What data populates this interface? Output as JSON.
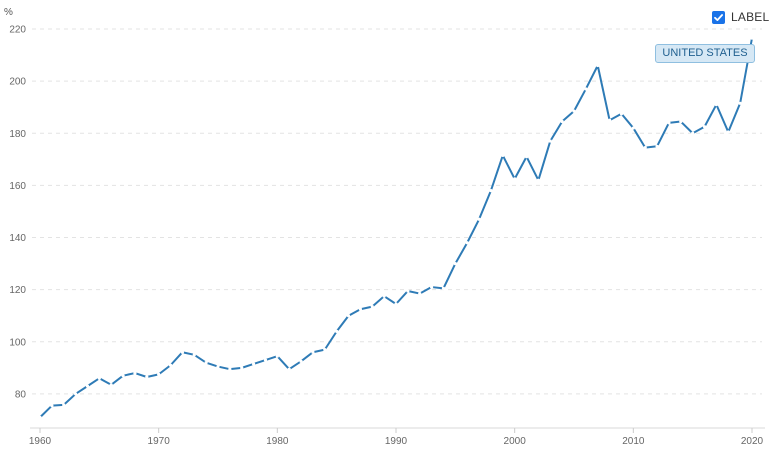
{
  "chart_data": {
    "type": "line",
    "ylabel": "%",
    "ylim": [
      70,
      220
    ],
    "xlim": [
      1960,
      2020
    ],
    "y_ticks": [
      80,
      100,
      120,
      140,
      160,
      180,
      200,
      220
    ],
    "x_ticks": [
      1960,
      1970,
      1980,
      1990,
      2000,
      2010,
      2020
    ],
    "grid": "horizontal dashed",
    "series": [
      {
        "name": "UNITED STATES",
        "color": "#2e7bb6",
        "x": [
          1960,
          1961,
          1962,
          1963,
          1964,
          1965,
          1966,
          1967,
          1968,
          1969,
          1970,
          1971,
          1972,
          1973,
          1974,
          1975,
          1976,
          1977,
          1978,
          1979,
          1980,
          1981,
          1982,
          1983,
          1984,
          1985,
          1986,
          1987,
          1988,
          1989,
          1990,
          1991,
          1992,
          1993,
          1994,
          1995,
          1996,
          1997,
          1998,
          1999,
          2000,
          2001,
          2002,
          2003,
          2004,
          2005,
          2006,
          2007,
          2008,
          2009,
          2010,
          2011,
          2012,
          2013,
          2014,
          2015,
          2016,
          2017,
          2018,
          2019,
          2020
        ],
        "values": [
          71,
          75.5,
          75.8,
          80,
          83,
          86,
          83.5,
          87,
          88,
          86.5,
          87.5,
          91,
          96,
          95,
          92,
          90.5,
          89.5,
          90,
          91.5,
          93,
          94.5,
          89.5,
          92.5,
          96,
          97,
          104,
          110,
          112.5,
          113.5,
          117.5,
          114.5,
          119.5,
          118.5,
          121,
          120.5,
          130,
          138,
          147,
          158,
          171.5,
          162.5,
          171,
          162,
          177,
          184.5,
          188.5,
          197,
          206,
          185,
          187.5,
          182,
          174.5,
          175,
          184,
          184.5,
          180,
          182.5,
          191,
          180.5,
          191.5,
          216.5
        ]
      }
    ]
  },
  "controls": {
    "label_toggle": "LABEL",
    "checked": true
  }
}
